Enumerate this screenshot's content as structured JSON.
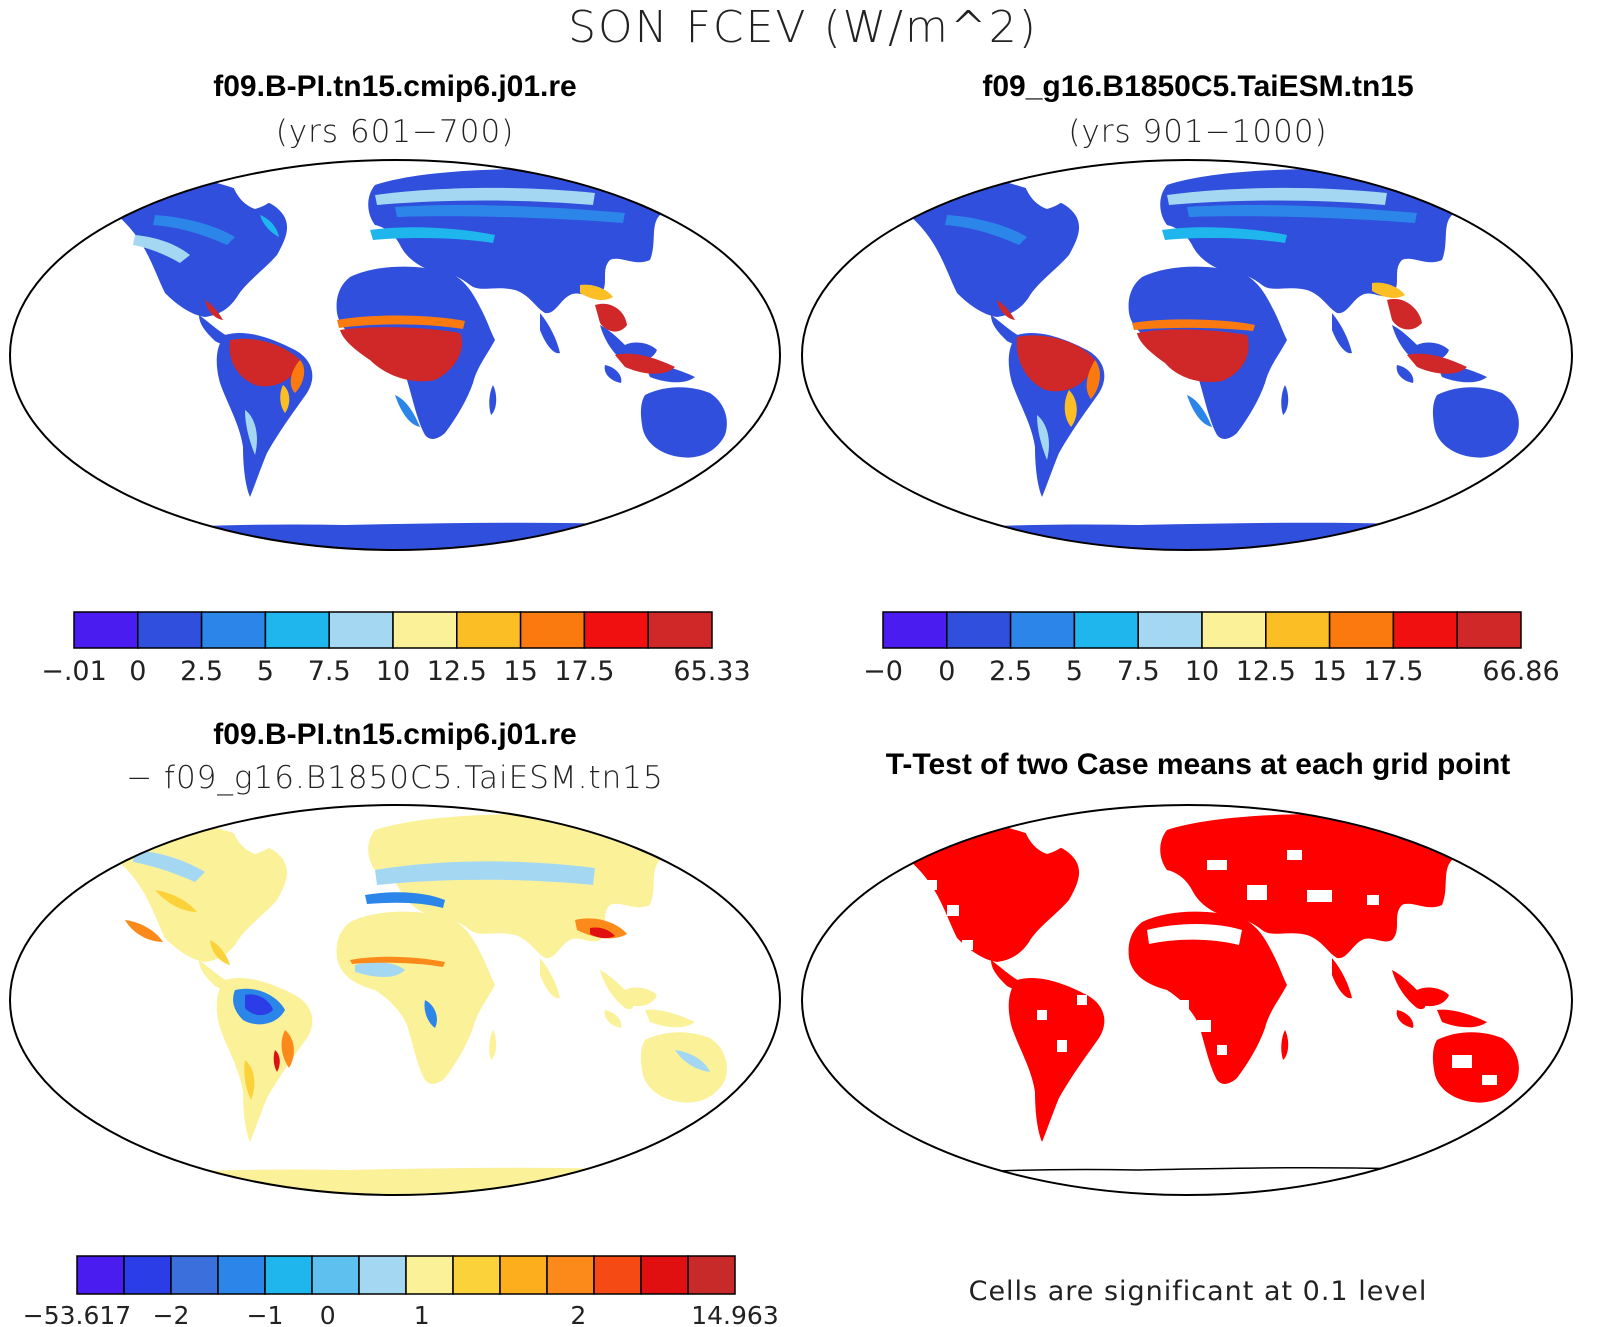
{
  "figure": {
    "title": "SON FCEV (W/m^2)"
  },
  "panels": [
    {
      "id": "case1",
      "title": "f09.B-PI.tn15.cmip6.j01.re",
      "subtitle": "(yrs 601−700)",
      "colorbar": {
        "colors": [
          "#4a1cf0",
          "#2f4fdc",
          "#2c86ea",
          "#1eb6ec",
          "#a4d8f2",
          "#fbf199",
          "#fcbe25",
          "#fb7a10",
          "#f01010",
          "#d02828"
        ],
        "labels": [
          "−.01",
          "0",
          "2.5",
          "5",
          "7.5",
          "10",
          "12.5",
          "15",
          "17.5",
          "",
          "65.33"
        ]
      }
    },
    {
      "id": "case2",
      "title": "f09_g16.B1850C5.TaiESM.tn15",
      "subtitle": "(yrs 901−1000)",
      "colorbar": {
        "colors": [
          "#4a1cf0",
          "#2f4fdc",
          "#2c86ea",
          "#1eb6ec",
          "#a4d8f2",
          "#fbf199",
          "#fcbe25",
          "#fb7a10",
          "#f01010",
          "#d02828"
        ],
        "labels": [
          "−0",
          "0",
          "2.5",
          "5",
          "7.5",
          "10",
          "12.5",
          "15",
          "17.5",
          "",
          "66.86"
        ]
      }
    },
    {
      "id": "diff",
      "title": "f09.B-PI.tn15.cmip6.j01.re",
      "subtitle": "− f09_g16.B1850C5.TaiESM.tn15",
      "colorbar": {
        "colors": [
          "#4a1cf0",
          "#2a3de6",
          "#3a6fdc",
          "#2c86ea",
          "#1eb6ec",
          "#5ec0ef",
          "#a4d8f2",
          "#fbf199",
          "#fcd23a",
          "#fcae1c",
          "#fb8a1a",
          "#f54a14",
          "#e01010",
          "#c82a2a"
        ],
        "labels": [
          "−53.617",
          "",
          "",
          "−2",
          "",
          "",
          "−1",
          "",
          "0",
          "",
          "",
          "1",
          "",
          "",
          "",
          "",
          "2",
          "",
          "",
          "",
          "",
          "14.963"
        ]
      }
    },
    {
      "id": "ttest",
      "title": "T-Test of two Case means at each grid point",
      "footnote": "Cells are significant at 0.1 level",
      "colors": {
        "significant": "#ff0000"
      }
    }
  ]
}
